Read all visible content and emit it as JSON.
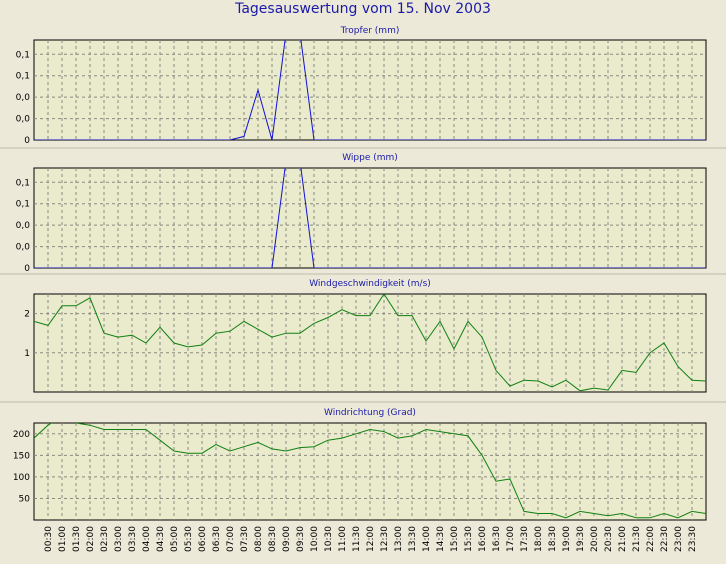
{
  "page_title": "Tagesauswertung vom 15. Nov 2003",
  "colors": {
    "title": "#1a1aa8",
    "blue_series": "#1010d8",
    "green_series": "#108010",
    "plot_bg": "#eaeacd"
  },
  "x_labels": [
    "00:30",
    "01:00",
    "01:30",
    "02:00",
    "02:30",
    "03:00",
    "03:30",
    "04:00",
    "04:30",
    "05:00",
    "05:30",
    "06:00",
    "06:30",
    "07:00",
    "07:30",
    "08:00",
    "08:30",
    "09:00",
    "09:30",
    "10:00",
    "10:30",
    "11:00",
    "11:30",
    "12:00",
    "12:30",
    "13:00",
    "13:30",
    "14:00",
    "14:30",
    "15:00",
    "15:30",
    "16:00",
    "16:30",
    "17:00",
    "17:30",
    "18:00",
    "18:30",
    "19:00",
    "19:30",
    "20:00",
    "20:30",
    "21:00",
    "21:30",
    "22:00",
    "22:30",
    "23:00",
    "23:30"
  ],
  "chart_data": [
    {
      "type": "line",
      "title": "Tropfer (mm)",
      "ylim": [
        0,
        0.14
      ],
      "y_ticks": [
        0,
        0.03,
        0.06,
        0.09,
        0.12
      ],
      "y_tick_labels": [
        "0",
        "0,0",
        "0,0",
        "0,1",
        "0,1"
      ],
      "color": "#1010d8",
      "series": [
        {
          "values": [
            0,
            0,
            0,
            0,
            0,
            0,
            0,
            0,
            0,
            0,
            0,
            0,
            0,
            0,
            0,
            0.005,
            0.07,
            0,
            0.15,
            0.15,
            0,
            0,
            0,
            0,
            0,
            0,
            0,
            0,
            0,
            0,
            0,
            0,
            0,
            0,
            0,
            0,
            0,
            0,
            0,
            0,
            0,
            0,
            0,
            0,
            0,
            0,
            0,
            0,
            0
          ]
        }
      ]
    },
    {
      "type": "line",
      "title": "Wippe (mm)",
      "ylim": [
        0,
        0.14
      ],
      "y_ticks": [
        0,
        0.03,
        0.06,
        0.09,
        0.12
      ],
      "y_tick_labels": [
        "0",
        "0,0",
        "0,0",
        "0,1",
        "0,1"
      ],
      "color": "#1010d8",
      "series": [
        {
          "values": [
            0,
            0,
            0,
            0,
            0,
            0,
            0,
            0,
            0,
            0,
            0,
            0,
            0,
            0,
            0,
            0,
            0,
            0,
            0.15,
            0.15,
            0,
            0,
            0,
            0,
            0,
            0,
            0,
            0,
            0,
            0,
            0,
            0,
            0,
            0,
            0,
            0,
            0,
            0,
            0,
            0,
            0,
            0,
            0,
            0,
            0,
            0,
            0,
            0,
            0
          ]
        }
      ]
    },
    {
      "type": "line",
      "title": "Windgeschwindigkeit (m/s)",
      "ylim": [
        0,
        2.5
      ],
      "y_ticks": [
        1,
        2
      ],
      "y_tick_labels": [
        "1",
        "2"
      ],
      "color": "#108010",
      "series": [
        {
          "values": [
            1.8,
            1.7,
            2.2,
            2.2,
            2.4,
            1.5,
            1.4,
            1.45,
            1.25,
            1.65,
            1.25,
            1.15,
            1.2,
            1.5,
            1.55,
            1.8,
            1.6,
            1.4,
            1.5,
            1.5,
            1.75,
            1.9,
            2.1,
            1.95,
            1.95,
            2.5,
            1.95,
            1.95,
            1.3,
            1.8,
            1.1,
            1.8,
            1.4,
            0.55,
            0.15,
            0.3,
            0.28,
            0.13,
            0.3,
            0.03,
            0.1,
            0.05,
            0.55,
            0.5,
            1.0,
            1.25,
            0.65,
            0.3,
            0.28
          ]
        }
      ]
    },
    {
      "type": "line",
      "title": "Windrichtung (Grad)",
      "ylim": [
        0,
        225
      ],
      "y_ticks": [
        50,
        100,
        150,
        200
      ],
      "y_tick_labels": [
        "50",
        "100",
        "150",
        "200"
      ],
      "color": "#108010",
      "series": [
        {
          "values": [
            190,
            220,
            240,
            225,
            220,
            210,
            210,
            210,
            210,
            185,
            160,
            155,
            155,
            175,
            160,
            170,
            180,
            165,
            160,
            168,
            170,
            185,
            190,
            200,
            210,
            205,
            190,
            195,
            210,
            205,
            200,
            195,
            150,
            90,
            95,
            20,
            15,
            15,
            5,
            20,
            15,
            10,
            15,
            5,
            5,
            15,
            5,
            20,
            15
          ]
        }
      ]
    }
  ]
}
